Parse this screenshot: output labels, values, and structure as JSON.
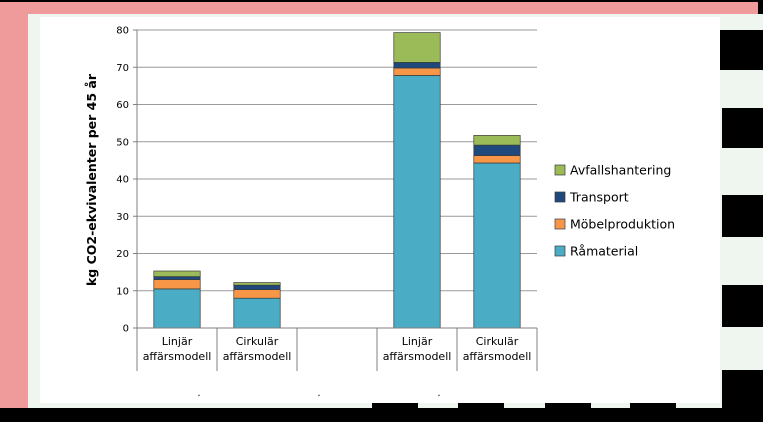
{
  "colors": {
    "background": "#000000",
    "frame_border": "#f09b9b",
    "panel": "#eef6ef",
    "plot_area": "#ffffff",
    "gridline": "#9a9a9a",
    "axis": "#808080",
    "bar_outline": "#3a3a3a",
    "Råmaterial": "#4bacc6",
    "Möbelproduktion": "#f79646",
    "Transport": "#1f497d",
    "Avfallshantering": "#9bbb59"
  },
  "chart_data": {
    "type": "bar",
    "stacked": true,
    "title": "",
    "xlabel": "",
    "ylabel": "kg CO2-ekvivalenter per 45 år",
    "ylim": [
      0,
      80
    ],
    "yticks": [
      0,
      10,
      20,
      30,
      40,
      50,
      60,
      70,
      80
    ],
    "grid": true,
    "legend_position": "right",
    "categories": [
      [
        "Linjär",
        "affärsmodell"
      ],
      [
        "Cirkulär",
        "affärsmodell"
      ],
      [
        "",
        ""
      ],
      [
        "Linjär",
        "affärsmodell"
      ],
      [
        "Cirkulär",
        "affärsmodell"
      ]
    ],
    "group_marks": [
      ".",
      ".",
      "."
    ],
    "series": [
      {
        "name": "Råmaterial",
        "values": [
          10.5,
          8.0,
          null,
          67.8,
          44.3
        ]
      },
      {
        "name": "Möbelproduktion",
        "values": [
          2.5,
          2.3,
          null,
          2.0,
          2.0
        ]
      },
      {
        "name": "Transport",
        "values": [
          0.8,
          1.2,
          null,
          1.5,
          2.8
        ]
      },
      {
        "name": "Avfallshantering",
        "values": [
          1.5,
          0.7,
          null,
          8.0,
          2.6
        ]
      }
    ],
    "legend_order": [
      "Avfallshantering",
      "Transport",
      "Möbelproduktion",
      "Råmaterial"
    ]
  }
}
